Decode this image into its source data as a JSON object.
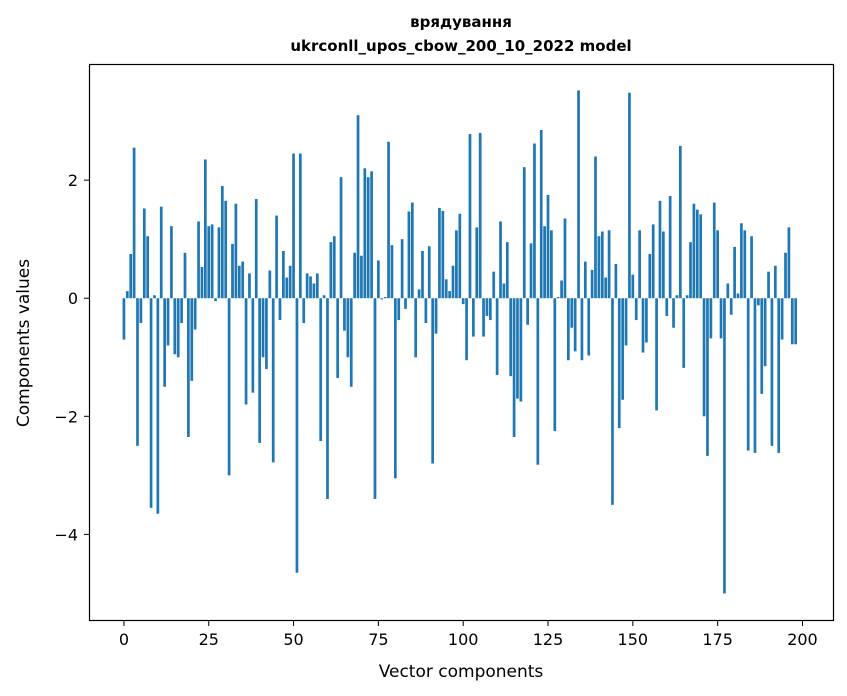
{
  "chart_data": {
    "type": "bar",
    "title": "врядування",
    "subtitle": "ukrconll_upos_cbow_200_10_2022 model",
    "xlabel": "Vector components",
    "ylabel": "Components values",
    "xlim": [
      -10,
      209
    ],
    "ylim": [
      -5.45,
      3.95
    ],
    "xticks": [
      0,
      25,
      50,
      75,
      100,
      125,
      150,
      175,
      200
    ],
    "yticks": [
      -4,
      -2,
      0,
      2
    ],
    "xtick_labels": [
      "0",
      "25",
      "50",
      "75",
      "100",
      "125",
      "150",
      "175",
      "200"
    ],
    "ytick_labels": [
      "−4",
      "−2",
      "0",
      "2"
    ],
    "bar_color": "#1f77b4",
    "grid": false,
    "legend": "none",
    "values": [
      -0.7,
      0.12,
      0.75,
      2.55,
      -2.5,
      -0.42,
      1.52,
      1.05,
      -3.55,
      0.05,
      -3.65,
      1.55,
      -1.5,
      -0.8,
      1.22,
      -0.95,
      -1.0,
      -0.42,
      0.77,
      -2.35,
      -1.4,
      -0.53,
      1.3,
      0.53,
      2.35,
      1.22,
      1.25,
      -0.05,
      1.2,
      1.9,
      1.65,
      -3.0,
      0.92,
      1.6,
      0.55,
      0.62,
      -1.8,
      0.42,
      -1.6,
      1.68,
      -2.45,
      -1.0,
      -1.2,
      0.47,
      -2.78,
      1.4,
      -0.37,
      0.8,
      0.35,
      0.55,
      2.45,
      -4.65,
      2.45,
      -0.42,
      0.42,
      0.37,
      0.25,
      0.42,
      -2.42,
      0.05,
      -3.4,
      0.95,
      1.05,
      -1.35,
      2.05,
      -0.55,
      -1.0,
      -1.5,
      0.77,
      3.1,
      0.72,
      2.2,
      2.05,
      2.15,
      -3.4,
      0.64,
      -0.02,
      0.02,
      2.65,
      0.9,
      -3.05,
      -0.37,
      1.0,
      -0.18,
      1.47,
      1.62,
      -1.0,
      0.15,
      0.8,
      -0.42,
      0.88,
      -2.8,
      -0.6,
      1.53,
      1.48,
      0.32,
      0.12,
      0.55,
      1.15,
      1.43,
      -0.1,
      -1.05,
      2.78,
      -0.65,
      1.2,
      2.8,
      -0.65,
      -0.3,
      -0.37,
      0.45,
      -1.3,
      1.3,
      0.25,
      0.95,
      -1.32,
      -2.35,
      -1.7,
      -1.75,
      2.22,
      -0.45,
      0.93,
      2.62,
      -2.82,
      2.85,
      1.22,
      1.75,
      1.15,
      -2.25,
      0.02,
      0.3,
      1.35,
      -1.05,
      -0.5,
      -0.9,
      3.52,
      -1.05,
      0.62,
      -0.97,
      0.48,
      2.4,
      1.05,
      1.13,
      0.35,
      1.15,
      -3.5,
      0.58,
      -2.2,
      -1.72,
      -0.8,
      3.48,
      0.4,
      -0.37,
      1.15,
      -0.92,
      -0.75,
      0.75,
      1.25,
      -1.9,
      1.65,
      1.13,
      -0.3,
      1.73,
      -0.5,
      0.05,
      2.58,
      -1.18,
      0.05,
      0.95,
      1.6,
      1.5,
      1.42,
      -2.0,
      -2.67,
      -0.68,
      1.62,
      1.15,
      -0.68,
      -5.0,
      0.25,
      -0.28,
      0.87,
      0.08,
      1.27,
      1.15,
      -2.58,
      1.05,
      -2.62,
      -0.12,
      -1.62,
      -1.15,
      0.45,
      -2.5,
      0.55,
      -2.62,
      -0.7,
      0.77,
      1.2,
      -0.78,
      -0.78
    ]
  }
}
